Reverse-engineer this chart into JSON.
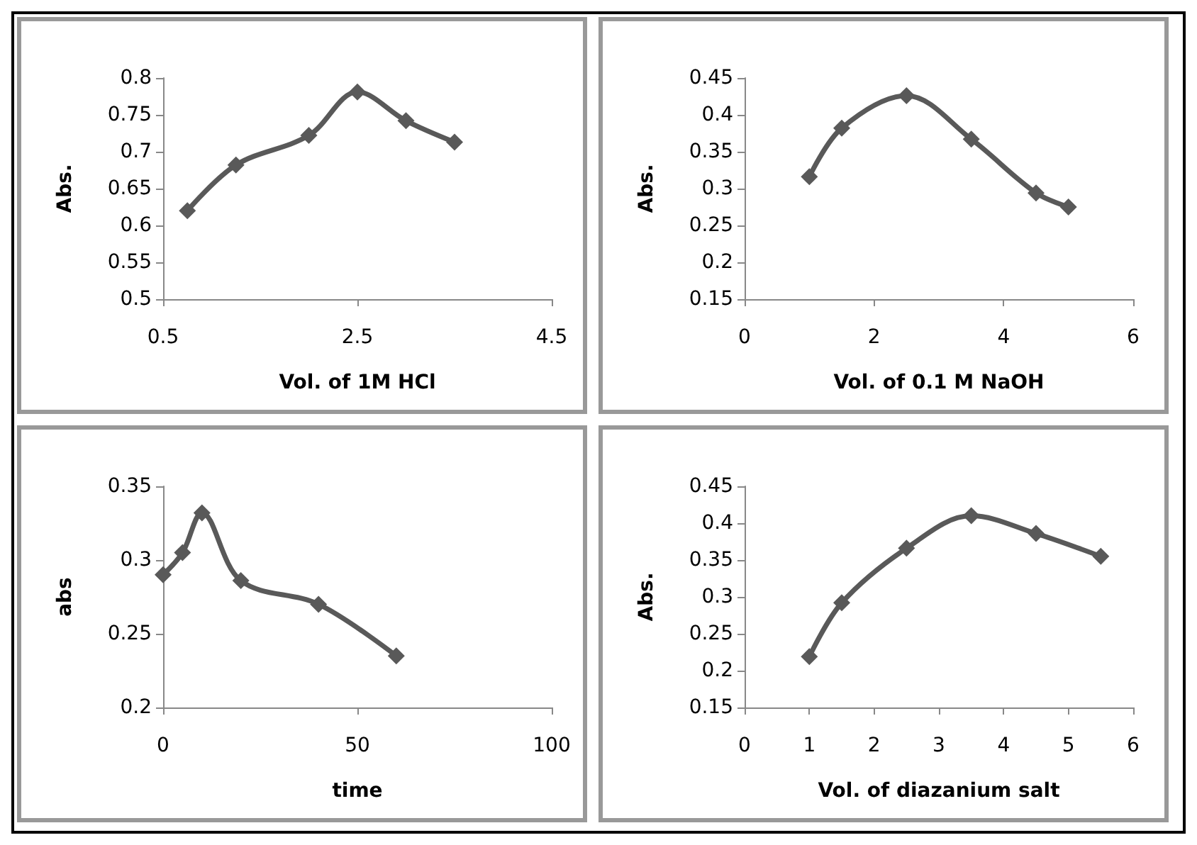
{
  "chart_data": [
    {
      "type": "line",
      "xlabel": "Vol. of 1M HCl",
      "ylabel": "Abs.",
      "x": [
        0.75,
        1.25,
        2,
        2.5,
        3,
        3.5
      ],
      "series": [
        {
          "color": "#595959",
          "values": [
            0.62,
            0.682,
            0.722,
            0.781,
            0.742,
            0.713
          ]
        }
      ],
      "xlim": [
        0.5,
        4.5
      ],
      "xticks": [
        0.5,
        2.5,
        4.5
      ],
      "ylim": [
        0.5,
        0.8
      ],
      "yticks": [
        0.5,
        0.55,
        0.6,
        0.65,
        0.7,
        0.75,
        0.8
      ],
      "marker": "diamond",
      "grid": false
    },
    {
      "type": "line",
      "xlabel": "Vol. of 0.1 M NaOH",
      "ylabel": "Abs.",
      "x": [
        1,
        1.5,
        2.5,
        3.5,
        4.5,
        5
      ],
      "series": [
        {
          "color": "#595959",
          "values": [
            0.316,
            0.382,
            0.426,
            0.367,
            0.294,
            0.275
          ]
        }
      ],
      "xlim": [
        0,
        6
      ],
      "xticks": [
        0,
        2,
        4,
        6
      ],
      "ylim": [
        0.15,
        0.45
      ],
      "yticks": [
        0.15,
        0.2,
        0.25,
        0.3,
        0.35,
        0.4,
        0.45
      ],
      "marker": "diamond",
      "grid": false
    },
    {
      "type": "line",
      "xlabel": "time",
      "ylabel": "abs",
      "x": [
        0,
        5,
        10,
        20,
        40,
        60
      ],
      "series": [
        {
          "color": "#595959",
          "values": [
            0.29,
            0.305,
            0.332,
            0.286,
            0.27,
            0.235
          ]
        }
      ],
      "xlim": [
        0,
        100
      ],
      "xticks": [
        0,
        50,
        100
      ],
      "ylim": [
        0.2,
        0.35
      ],
      "yticks": [
        0.2,
        0.25,
        0.3,
        0.35
      ],
      "marker": "diamond",
      "grid": false
    },
    {
      "type": "line",
      "xlabel": "Vol. of diazanium salt",
      "ylabel": "Abs.",
      "x": [
        1,
        1.5,
        2.5,
        3.5,
        4.5,
        5.5
      ],
      "series": [
        {
          "color": "#595959",
          "values": [
            0.219,
            0.292,
            0.366,
            0.41,
            0.386,
            0.355
          ]
        }
      ],
      "xlim": [
        0,
        6
      ],
      "xticks": [
        0,
        1,
        2,
        3,
        4,
        5,
        6
      ],
      "ylim": [
        0.15,
        0.45
      ],
      "yticks": [
        0.15,
        0.2,
        0.25,
        0.3,
        0.35,
        0.4,
        0.45
      ],
      "marker": "diamond",
      "grid": false
    }
  ]
}
